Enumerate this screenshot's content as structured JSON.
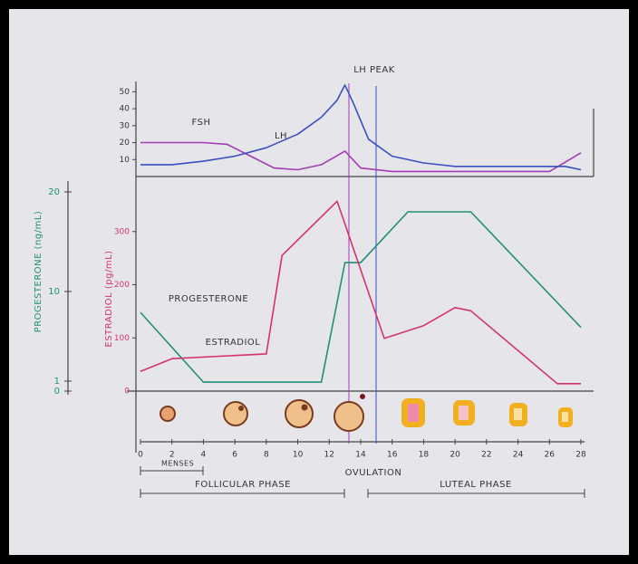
{
  "chart_data": [
    {
      "type": "line",
      "xlim": [
        0,
        28
      ],
      "ylim": [
        0,
        55
      ],
      "yticks": [
        10,
        20,
        30,
        40,
        50
      ],
      "annotations": [
        "LH PEAK"
      ],
      "series": [
        {
          "name": "FSH",
          "color": "#a23cb4",
          "x": [
            0,
            4,
            5.5,
            7,
            8.5,
            10,
            11.5,
            13,
            14,
            16,
            20,
            26,
            28
          ],
          "values": [
            20,
            20,
            19,
            12,
            5,
            4,
            7,
            15,
            5,
            3,
            3,
            3,
            14
          ]
        },
        {
          "name": "LH",
          "color": "#3a4fc2",
          "x": [
            0,
            2,
            4,
            6,
            8,
            10,
            11.5,
            12.5,
            13,
            13.5,
            14.5,
            16,
            18,
            20,
            24,
            27,
            28
          ],
          "values": [
            7,
            7,
            9,
            12,
            17,
            25,
            35,
            45,
            54,
            44,
            22,
            12,
            8,
            6,
            6,
            6,
            4
          ]
        }
      ]
    },
    {
      "type": "line",
      "xlim": [
        0,
        28
      ],
      "ylim": [
        0,
        400
      ],
      "yticks": [
        0,
        100,
        200,
        300
      ],
      "y2lim": [
        0,
        21
      ],
      "y2ticks": [
        0,
        1,
        10,
        20
      ],
      "xticks": [
        0,
        2,
        4,
        6,
        8,
        10,
        12,
        14,
        16,
        18,
        20,
        22,
        24,
        26,
        28
      ],
      "ylabel": "ESTRADIOL (pg/mL)",
      "y2label": "PROGESTERONE (ng/mL)",
      "annotations": [
        "OVULATION",
        "MENSES",
        "FOLLICULAR PHASE",
        "LUTEAL PHASE"
      ],
      "series": [
        {
          "name": "PROGESTERONE",
          "color": "#1f8f78",
          "axis": "y2",
          "x": [
            0,
            4,
            11.5,
            13,
            14,
            17,
            21,
            28
          ],
          "values": [
            7.9,
            0.9,
            0.9,
            12.9,
            12.9,
            18,
            18,
            6.4
          ]
        },
        {
          "name": "ESTRADIOL",
          "color": "#d3336c",
          "x": [
            0,
            2,
            8,
            9,
            12.5,
            15.5,
            18,
            20,
            21,
            26.5,
            28
          ],
          "values": [
            37,
            61,
            70,
            255,
            357,
            99,
            123,
            157,
            151,
            14,
            14
          ]
        }
      ]
    }
  ]
}
